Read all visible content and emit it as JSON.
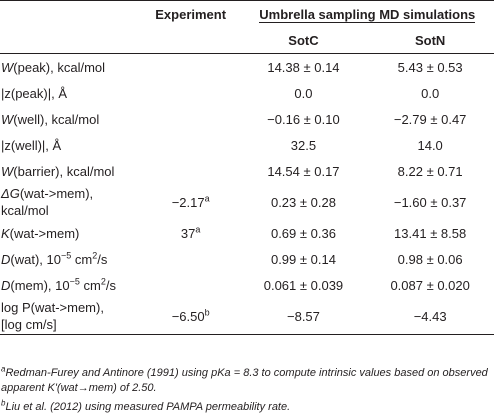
{
  "header": {
    "col_label": "",
    "col_experiment": "Experiment",
    "col_group": "Umbrella sampling MD simulations",
    "sub_a": "SotC",
    "sub_b": "SotN"
  },
  "rows": [
    {
      "label_main": "W",
      "label_rest": "(peak), kcal/mol",
      "exp": "",
      "exp_sup": "",
      "a": "14.38 ± 0.14",
      "b": "5.43 ± 0.53"
    },
    {
      "label_main": "|z(peak)|, Å",
      "label_rest": "",
      "exp": "",
      "exp_sup": "",
      "a": "0.0",
      "b": "0.0"
    },
    {
      "label_main": "W",
      "label_rest": "(well), kcal/mol",
      "exp": "",
      "exp_sup": "",
      "a": "−0.16 ± 0.10",
      "b": "−2.79 ± 0.47"
    },
    {
      "label_main": "|z(well)|, Å",
      "label_rest": "",
      "exp": "",
      "exp_sup": "",
      "a": "32.5",
      "b": "14.0"
    },
    {
      "label_main": "W",
      "label_rest": "(barrier), kcal/mol",
      "exp": "",
      "exp_sup": "",
      "a": "14.54 ± 0.17",
      "b": "8.22 ± 0.71"
    },
    {
      "label_main": "ΔG",
      "label_rest": "(wat->mem),",
      "label_line2": "kcal/mol",
      "exp": "−2.17",
      "exp_sup": "a",
      "a": "0.23 ± 0.28",
      "b": "−1.60 ± 0.37"
    },
    {
      "label_main": "K",
      "label_rest": "(wat->mem)",
      "exp": "37",
      "exp_sup": "a",
      "a": "0.69 ± 0.36",
      "b": "13.41 ± 8.58"
    },
    {
      "label_main": "D",
      "label_rest": "(wat), 10",
      "label_unit": "−5",
      "label_unit_rest": " cm",
      "label_unit2": "2",
      "label_unit_rest2": "/s",
      "exp": "",
      "exp_sup": "",
      "a": "0.99 ± 0.14",
      "b": "0.98 ± 0.06"
    },
    {
      "label_main": "D",
      "label_rest": "(mem), 10",
      "label_unit": "−5",
      "label_unit_rest": " cm",
      "label_unit2": "2",
      "label_unit_rest2": "/s",
      "exp": "",
      "exp_sup": "",
      "a": "0.061 ± 0.039",
      "b": "0.087 ± 0.020"
    },
    {
      "label_main": "log P(wat->mem),",
      "label_line2": "[log cm/s]",
      "exp": "−6.50",
      "exp_sup": "b",
      "a": "−8.57",
      "b": "−4.43"
    }
  ],
  "footnotes": {
    "a_mark": "a",
    "a_text": "Redman-Furey and Antinore (1991) using pKa = 8.3 to compute intrinsic values based on observed apparent K'(wat→mem) of 2.50.",
    "b_mark": "b",
    "b_text": "Liu et al. (2012) using measured PAMPA permeability rate."
  }
}
